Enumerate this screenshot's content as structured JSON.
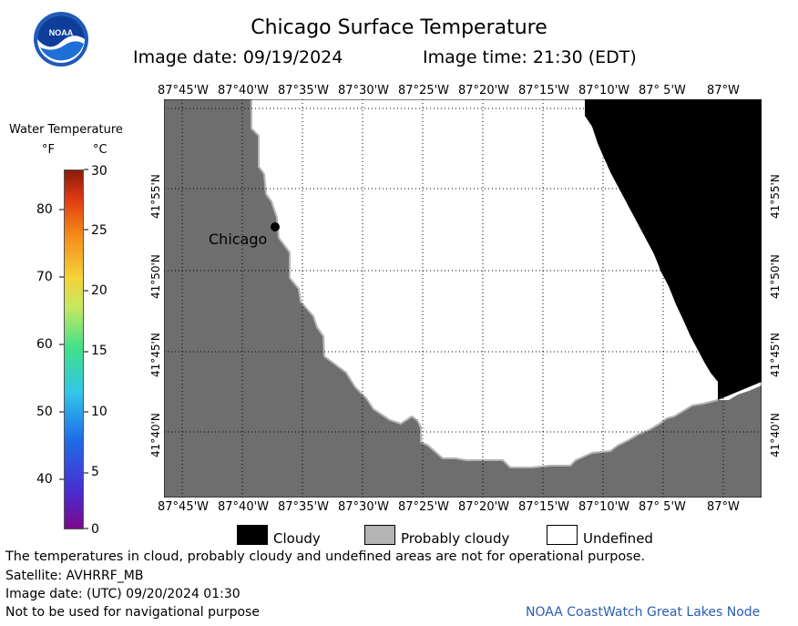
{
  "logo": {
    "text": "NOAA"
  },
  "header": {
    "title": "Chicago Surface Temperature",
    "image_date": "Image date: 09/19/2024",
    "image_time": "Image time: 21:30 (EDT)"
  },
  "colorbar": {
    "title": "Water Temperature",
    "unit_f": "°F",
    "unit_c": "°C",
    "f_ticks": [
      "80",
      "70",
      "60",
      "50",
      "40"
    ],
    "c_ticks": [
      "30",
      "25",
      "20",
      "15",
      "10",
      "5",
      "0"
    ]
  },
  "map": {
    "lon_labels": [
      "87°45'W",
      "87°40'W",
      "87°35'W",
      "87°30'W",
      "87°25'W",
      "87°20'W",
      "87°15'W",
      "87°10'W",
      "87° 5'W",
      "87°W"
    ],
    "lat_labels": [
      "41°55'N",
      "41°50'N",
      "41°45'N",
      "41°40'N"
    ],
    "city_label": "Chicago",
    "colors": {
      "land": "#6e6e6e",
      "cloudy": "#000000",
      "probably_cloudy": "#b4b4b4",
      "undefined": "#ffffff"
    }
  },
  "legend": {
    "cloudy": "Cloudy",
    "probably_cloudy": "Probably cloudy",
    "undefined": "Undefined"
  },
  "footer": {
    "disclaimer": "The temperatures in cloud, probably cloudy and undefined areas are not for operational purpose.",
    "satellite": "Satellite: AVHRRF_MB",
    "utc_date": "Image date: (UTC) 09/20/2024  01:30",
    "nav_warning": "Not to be used for navigational purpose",
    "credit": "NOAA CoastWatch Great Lakes Node"
  }
}
